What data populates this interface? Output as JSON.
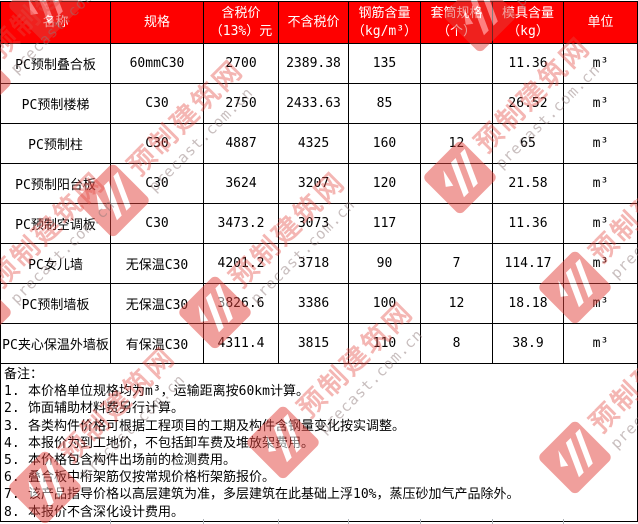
{
  "table": {
    "columns": [
      {
        "l1": "名称"
      },
      {
        "l1": "规格"
      },
      {
        "l1": "含税价",
        "l2": "（13%）元"
      },
      {
        "l1": "不含税价"
      },
      {
        "l1": "钢筋含量",
        "l2": "（kg/m³）"
      },
      {
        "l1": "套筒规格",
        "l2": "（个）"
      },
      {
        "l1": "模具含量",
        "l2": "（kg）"
      },
      {
        "l1": "单位"
      }
    ],
    "rows": [
      {
        "name": "PC预制叠合板",
        "spec": "60mmC30",
        "price_incl_tax": "2700",
        "price_excl_tax": "2389.38",
        "rebar": "135",
        "sleeve": "",
        "mould": "11.36",
        "unit": "m³"
      },
      {
        "name": "PC预制楼梯",
        "spec": "C30",
        "price_incl_tax": "2750",
        "price_excl_tax": "2433.63",
        "rebar": "85",
        "sleeve": "",
        "mould": "26.52",
        "unit": "m³"
      },
      {
        "name": "PC预制柱",
        "spec": "C30",
        "price_incl_tax": "4887",
        "price_excl_tax": "4325",
        "rebar": "160",
        "sleeve": "12",
        "mould": "65",
        "unit": "m³"
      },
      {
        "name": "PC预制阳台板",
        "spec": "C30",
        "price_incl_tax": "3624",
        "price_excl_tax": "3207",
        "rebar": "120",
        "sleeve": "",
        "mould": "21.58",
        "unit": "m³"
      },
      {
        "name": "PC预制空调板",
        "spec": "C30",
        "price_incl_tax": "3473.2",
        "price_excl_tax": "3073",
        "rebar": "117",
        "sleeve": "",
        "mould": "11.36",
        "unit": "m³"
      },
      {
        "name": "PC女儿墙",
        "spec": "无保温C30",
        "price_incl_tax": "4201.2",
        "price_excl_tax": "3718",
        "rebar": "90",
        "sleeve": "7",
        "mould": "114.17",
        "unit": "m³"
      },
      {
        "name": "PC预制墙板",
        "spec": "无保温C30",
        "price_incl_tax": "3826.6",
        "price_excl_tax": "3386",
        "rebar": "100",
        "sleeve": "12",
        "mould": "18.18",
        "unit": "m³"
      },
      {
        "name": "PC夹心保温外墙板",
        "spec": "有保温C30",
        "price_incl_tax": "4311.4",
        "price_excl_tax": "3815",
        "rebar": "110",
        "sleeve": "8",
        "mould": "38.9",
        "unit": "m³"
      }
    ]
  },
  "notes": {
    "title": "备注：",
    "items": [
      {
        "n": "1.",
        "t": "本价格单位规格均为m³，运输距离按60km计算。"
      },
      {
        "n": "2.",
        "t": "饰面辅助材料费另行计算。"
      },
      {
        "n": "3.",
        "t": "各类构件价格可根据工程项目的工期及构件含钢量变化按实调整。"
      },
      {
        "n": "4.",
        "t": "本报价为到工地价，不包括卸车费及堆放架费用。"
      },
      {
        "n": "5.",
        "t": "本价格包含构件出场前的检测费用。"
      },
      {
        "n": "6.",
        "t": "叠合板中桁架筋仅按常规价格桁架筋报价。"
      },
      {
        "n": "7.",
        "t": "该产品指导价格以高层建筑为准，多层建筑在此基础上浮10%，蒸压砂加气产品除外。"
      },
      {
        "n": "8.",
        "t": "本报价不含深化设计费用。"
      }
    ]
  },
  "watermark": {
    "cn": "预制建筑网",
    "en": "precast.com.cn"
  },
  "colors": {
    "header_bg": "#fe0000",
    "header_text": "#ffffff",
    "border": "#000000",
    "watermark_red": "#e2423c"
  }
}
